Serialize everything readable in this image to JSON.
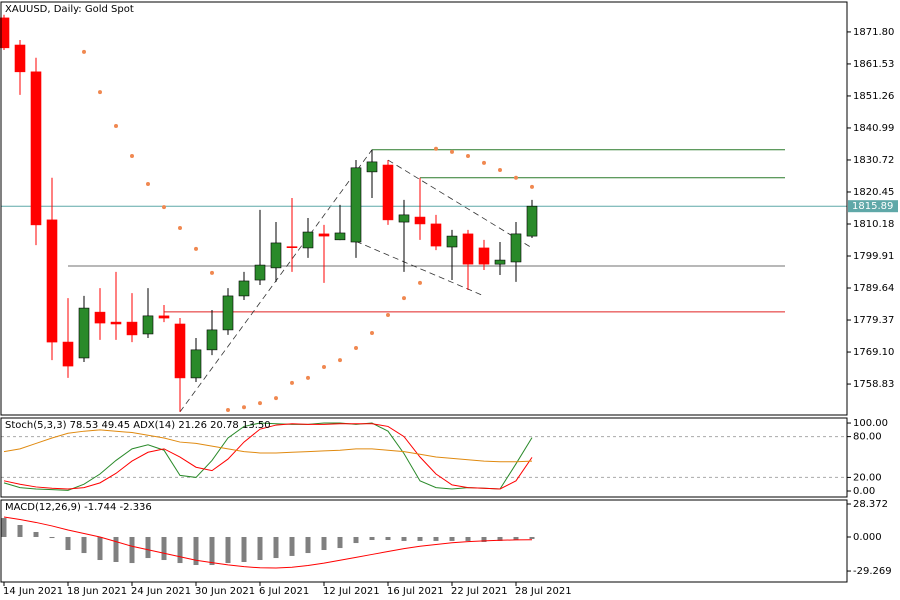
{
  "chart_data": [
    {
      "type": "candlestick",
      "title": "XAUUSD, Daily:  Gold Spot",
      "categories": [
        "14 Jun 2021",
        null,
        null,
        null,
        "18 Jun 2021",
        null,
        null,
        null,
        "24 Jun 2021",
        null,
        null,
        null,
        "30 Jun 2021",
        null,
        null,
        null,
        "6 Jul 2021",
        null,
        null,
        null,
        "12 Jul 2021",
        null,
        null,
        null,
        "16 Jul 2021",
        null,
        null,
        null,
        "22 Jul 2021",
        null,
        null,
        null,
        "28 Jul 2021",
        null
      ],
      "open": [
        1876.3,
        1867.6,
        1859.0,
        1811.5,
        1772.3,
        1767.2,
        1781.9,
        1778.7,
        1778.7,
        1774.9,
        1780.7,
        1778.1,
        1760.8,
        1769.8,
        1776.2,
        1787.1,
        1792.2,
        1796.1,
        1802.9,
        1802.5,
        1807.0,
        1805.1,
        1804.4,
        1826.9,
        1829.1,
        1810.8,
        1812.4,
        1810.2,
        1802.8,
        1807.0,
        1802.5,
        1797.3,
        1798.0,
        1806.3
      ],
      "high": [
        1877.3,
        1869.2,
        1863.5,
        1825.0,
        1786.4,
        1787.1,
        1789.6,
        1794.8,
        1788.0,
        1789.6,
        1784.2,
        1780.0,
        1773.6,
        1782.6,
        1789.6,
        1794.8,
        1814.7,
        1810.8,
        1818.5,
        1812.1,
        1809.9,
        1816.3,
        1830.7,
        1834.0,
        1830.7,
        1817.9,
        1825.0,
        1813.1,
        1808.3,
        1808.3,
        1805.1,
        1804.4,
        1810.8,
        1817.9
      ],
      "low": [
        1866.0,
        1851.6,
        1803.4,
        1766.5,
        1760.8,
        1765.9,
        1773.0,
        1773.0,
        1772.3,
        1773.6,
        1778.7,
        1749.9,
        1759.5,
        1768.1,
        1774.6,
        1785.8,
        1790.6,
        1791.6,
        1794.8,
        1799.3,
        1791.3,
        1805.0,
        1799.3,
        1818.5,
        1809.9,
        1794.8,
        1805.1,
        1801.8,
        1792.2,
        1789.0,
        1795.4,
        1793.8,
        1791.6,
        1805.7
      ],
      "close": [
        1866.7,
        1859.0,
        1809.9,
        1772.3,
        1764.6,
        1783.2,
        1778.4,
        1778.1,
        1774.6,
        1780.7,
        1780.0,
        1760.8,
        1769.8,
        1776.2,
        1787.1,
        1791.9,
        1797.0,
        1804.1,
        1802.6,
        1807.6,
        1806.3,
        1807.3,
        1828.2,
        1830.1,
        1811.5,
        1813.1,
        1810.2,
        1803.1,
        1806.3,
        1797.3,
        1797.3,
        1798.6,
        1807.0,
        1815.89
      ],
      "up_color": "#2a8a2a",
      "down_color": "#ff0000",
      "sar": [
        null,
        null,
        null,
        null,
        null,
        1865.4,
        1852.5,
        1841.6,
        1832.0,
        1823.0,
        1815.6,
        1808.9,
        1802.2,
        1794.5,
        1750.5,
        1751.4,
        1752.7,
        1754.3,
        1759.2,
        1760.8,
        1764.3,
        1766.5,
        1770.4,
        1775.2,
        1781.0,
        1786.4,
        1791.3,
        1834.3,
        1833.3,
        1832.0,
        1829.8,
        1827.5,
        1825.0,
        1822.1
      ],
      "sar_color": "#f08850",
      "levels": [
        {
          "value": 1834.0,
          "from": 23,
          "color": "#2a7a2a"
        },
        {
          "value": 1825.0,
          "from": 26,
          "color": "#2a7a2a"
        },
        {
          "value": 1796.7,
          "from": 4,
          "color": "#707070"
        },
        {
          "value": 1782.0,
          "from": 10,
          "color": "#e02020"
        }
      ],
      "trendlines": [
        {
          "from": [
            11,
            1749.9
          ],
          "to": [
            23,
            1834.0
          ]
        },
        {
          "from": [
            22,
            1804.6
          ],
          "to": [
            30,
            1787.1
          ]
        },
        {
          "from": [
            24,
            1830.7
          ],
          "to": [
            33,
            1802.5
          ]
        }
      ],
      "last_price": 1815.89,
      "last_color": "#5fa8a8",
      "ylim": [
        1748.9,
        1881.4
      ],
      "yticks": [
        {
          "value": 1871.8,
          "label": "1871.80"
        },
        1861.53,
        1851.26,
        1840.99,
        1830.72,
        1820.45,
        1810.18,
        1799.91,
        1789.64,
        1779.37,
        {
          "value": 1769.1,
          "label": "1769.10"
        },
        1758.83
      ]
    },
    {
      "type": "line",
      "title": "Stoch(5,3,3) 78.53 49.45 ADX(14) 21.26 20.78 13.50",
      "series": [
        {
          "color": "#2a8a2a",
          "values": [
            12,
            5,
            3,
            2,
            1,
            10,
            25,
            45,
            62,
            68,
            60,
            23,
            20,
            45,
            78,
            95,
            100,
            99,
            98,
            98,
            100,
            100,
            98,
            100,
            88,
            55,
            15,
            5,
            3,
            5,
            4,
            3,
            40,
            78.53
          ]
        },
        {
          "color": "#ff0000",
          "values": [
            15,
            10,
            6,
            4,
            3,
            5,
            12,
            26,
            44,
            57,
            62,
            50,
            35,
            30,
            47,
            72,
            91,
            97,
            99,
            98,
            98,
            99,
            99,
            99,
            95,
            80,
            50,
            25,
            9,
            5,
            4,
            3,
            15,
            49.45
          ]
        },
        {
          "color": "#e08a10",
          "values": [
            58,
            62,
            70,
            78,
            85,
            88,
            90,
            88,
            86,
            82,
            78,
            72,
            70,
            66,
            62,
            58,
            56,
            56,
            57,
            58,
            59,
            60,
            62,
            62,
            60,
            58,
            54,
            50,
            48,
            46,
            44,
            43,
            43,
            44
          ]
        }
      ],
      "levels": [
        80,
        20
      ],
      "ylim": [
        -8.8,
        107.4
      ],
      "yticks": [
        {
          "value": 100,
          "label": "100.00"
        },
        {
          "value": 80,
          "label": "80.00"
        },
        {
          "value": 20,
          "label": "20.00"
        },
        {
          "value": 0,
          "label": "0.00"
        }
      ]
    },
    {
      "type": "macd",
      "title": "MACD(12,26,9) -1.744 -2.336",
      "series": [
        {
          "style": "bar",
          "color": "#808080",
          "values": [
            16.3,
            10.3,
            4.3,
            -0.9,
            -11.2,
            -13.8,
            -19.8,
            -21.5,
            -22.4,
            -18.1,
            -19.8,
            -22.4,
            -24.1,
            -24.1,
            -22.4,
            -21.5,
            -19.8,
            -18.1,
            -16.3,
            -13.8,
            -11.2,
            -9.5,
            -5.2,
            -2.6,
            -2.6,
            -3.4,
            -3.4,
            -3.4,
            -3.4,
            -3.4,
            -4.3,
            -3.4,
            -2.6,
            -1.744
          ]
        },
        {
          "style": "line",
          "color": "#ff0000",
          "values": [
            17.2,
            15,
            12.5,
            9.5,
            6,
            3,
            0,
            -4,
            -8,
            -11,
            -14,
            -17,
            -20,
            -22,
            -24,
            -25.5,
            -26.5,
            -26.7,
            -26,
            -24.5,
            -22.5,
            -20,
            -17.5,
            -15,
            -12.5,
            -10,
            -8,
            -6.5,
            -5,
            -4,
            -3.3,
            -2.8,
            -2.5,
            -2.336
          ]
        }
      ],
      "ylim": [
        -38.7,
        31.8
      ],
      "yticks": [
        28.372,
        {
          "value": 0,
          "label": "0.000"
        },
        -29.269
      ]
    }
  ]
}
